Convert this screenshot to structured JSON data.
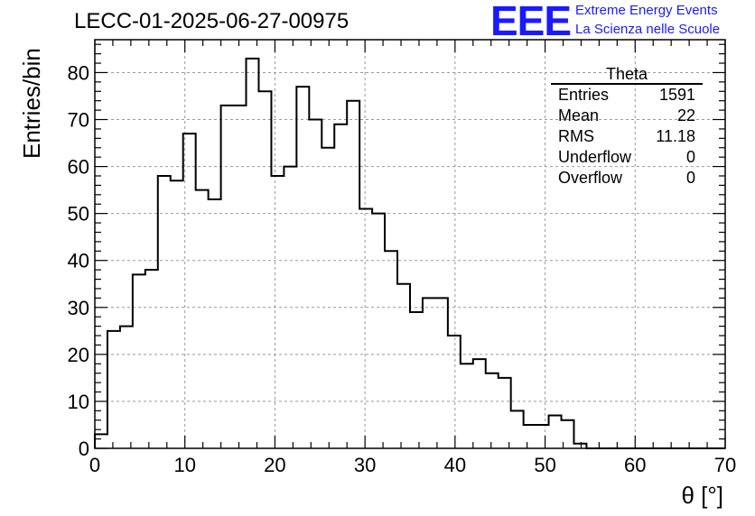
{
  "chart_data": {
    "type": "histogram",
    "title": "LECC-01-2025-06-27-00975",
    "xlabel": "θ [°]",
    "ylabel": "Entries/bin",
    "xlim": [
      0,
      70
    ],
    "ylim": [
      0,
      87
    ],
    "xticks": [
      "0",
      "10",
      "20",
      "30",
      "40",
      "50",
      "60",
      "70"
    ],
    "yticks": [
      "0",
      "10",
      "20",
      "30",
      "40",
      "50",
      "60",
      "70",
      "80"
    ],
    "grid": true,
    "bin_width": 1.4,
    "bin_start": 0,
    "values": [
      3,
      25,
      26,
      37,
      38,
      58,
      57,
      67,
      55,
      53,
      73,
      73,
      83,
      76,
      58,
      60,
      77,
      70,
      64,
      69,
      74,
      51,
      50,
      42,
      35,
      29,
      32,
      32,
      24,
      18,
      19,
      16,
      15,
      8,
      5,
      5,
      7,
      6,
      1,
      0,
      0,
      0,
      0,
      0,
      0,
      0,
      0,
      0,
      0,
      0
    ],
    "stats": {
      "name": "Theta",
      "rows": [
        {
          "label": "Entries",
          "value": "1591"
        },
        {
          "label": "Mean",
          "value": "22"
        },
        {
          "label": "RMS",
          "value": "11.18"
        },
        {
          "label": "Underflow",
          "value": "0"
        },
        {
          "label": "Overflow",
          "value": "0"
        }
      ]
    }
  },
  "logo": {
    "mark": "EEE",
    "line1": "Extreme Energy Events",
    "line2": "La Scienza nelle Scuole",
    "color": "#1a1aff"
  }
}
